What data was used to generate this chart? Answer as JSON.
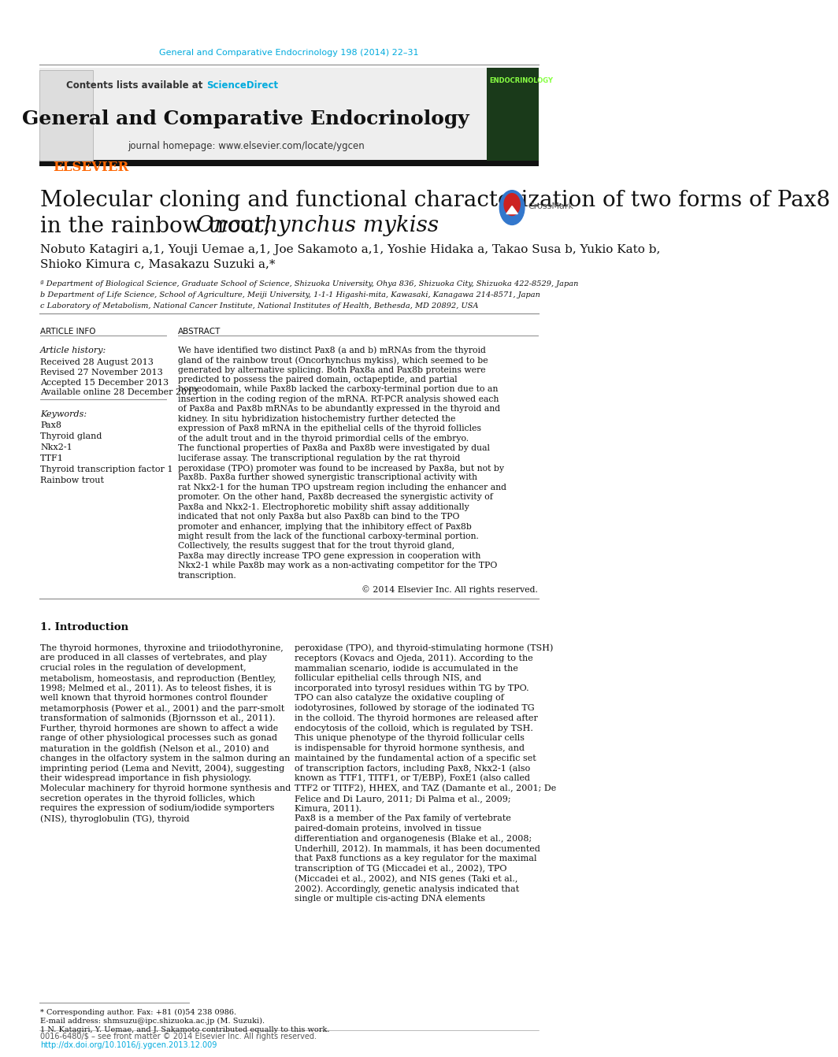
{
  "journal_citation": "General and Comparative Endocrinology 198 (2014) 22–31",
  "journal_name": "General and Comparative Endocrinology",
  "journal_homepage": "journal homepage: www.elsevier.com/locate/ygcen",
  "contents_text": "Contents lists available at ",
  "sciencedirect_text": "ScienceDirect",
  "title_line1": "Molecular cloning and functional characterization of two forms of Pax8",
  "title_line2": "in the rainbow trout, ",
  "title_italic": "Oncorhynchus mykiss",
  "authors": "Nobuto Katagiri a,1, Youji Uemae a,1, Joe Sakamoto a,1, Yoshie Hidaka a, Takao Susa b, Yukio Kato b,\nShioko Kimura c, Masakazu Suzuki a,*",
  "affil_a": "ª Department of Biological Science, Graduate School of Science, Shizuoka University, Ohya 836, Shizuoka City, Shizuoka 422-8529, Japan",
  "affil_b": "b Department of Life Science, School of Agriculture, Meiji University, 1-1-1 Higashi-mita, Kawasaki, Kanagawa 214-8571, Japan",
  "affil_c": "c Laboratory of Metabolism, National Cancer Institute, National Institutes of Health, Bethesda, MD 20892, USA",
  "article_info_header": "ARTICLE INFO",
  "abstract_header": "ABSTRACT",
  "article_history_label": "Article history:",
  "received": "Received 28 August 2013",
  "revised": "Revised 27 November 2013",
  "accepted": "Accepted 15 December 2013",
  "available": "Available online 28 December 2013",
  "keywords_label": "Keywords:",
  "keywords": [
    "Pax8",
    "Thyroid gland",
    "Nkx2-1",
    "TTF1",
    "Thyroid transcription factor 1",
    "Rainbow trout"
  ],
  "abstract_text": "We have identified two distinct Pax8 (a and b) mRNAs from the thyroid gland of the rainbow trout (Oncorhynchus mykiss), which seemed to be generated by alternative splicing. Both Pax8a and Pax8b proteins were predicted to possess the paired domain, octapeptide, and partial homeodomain, while Pax8b lacked the carboxy-terminal portion due to an insertion in the coding region of the mRNA. RT-PCR analysis showed each of Pax8a and Pax8b mRNAs to be abundantly expressed in the thyroid and kidney. In situ hybridization histochemistry further detected the expression of Pax8 mRNA in the epithelial cells of the thyroid follicles of the adult trout and in the thyroid primordial cells of the embryo. The functional properties of Pax8a and Pax8b were investigated by dual luciferase assay. The transcriptional regulation by the rat thyroid peroxidase (TPO) promoter was found to be increased by Pax8a, but not by Pax8b. Pax8a further showed synergistic transcriptional activity with rat Nkx2-1 for the human TPO upstream region including the enhancer and promoter. On the other hand, Pax8b decreased the synergistic activity of Pax8a and Nkx2-1. Electrophoretic mobility shift assay additionally indicated that not only Pax8a but also Pax8b can bind to the TPO promoter and enhancer, implying that the inhibitory effect of Pax8b might result from the lack of the functional carboxy-terminal portion. Collectively, the results suggest that for the trout thyroid gland, Pax8a may directly increase TPO gene expression in cooperation with Nkx2-1 while Pax8b may work as a non-activating competitor for the TPO transcription.",
  "copyright": "© 2014 Elsevier Inc. All rights reserved.",
  "section1_title": "1. Introduction",
  "intro_col1": "The thyroid hormones, thyroxine and triiodothyronine, are produced in all classes of vertebrates, and play crucial roles in the regulation of development, metabolism, homeostasis, and reproduction (Bentley, 1998; Melmed et al., 2011). As to teleost fishes, it is well known that thyroid hormones control flounder metamorphosis (Power et al., 2001) and the parr-smolt transformation of salmonids (Bjornsson et al., 2011). Further, thyroid hormones are shown to affect a wide range of other physiological processes such as gonad maturation in the goldfish (Nelson et al., 2010) and changes in the olfactory system in the salmon during an imprinting period (Lema and Nevitt, 2004), suggesting their widespread importance in fish physiology.\n    Molecular machinery for thyroid hormone synthesis and secretion operates in the thyroid follicles, which requires the expression of sodium/iodide symporters (NIS), thyroglobulin (TG), thyroid",
  "intro_col2": "peroxidase (TPO), and thyroid-stimulating hormone (TSH) receptors (Kovacs and Ojeda, 2011). According to the mammalian scenario, iodide is accumulated in the follicular epithelial cells through NIS, and incorporated into tyrosyl residues within TG by TPO. TPO can also catalyze the oxidative coupling of iodotyrosines, followed by storage of the iodinated TG in the colloid. The thyroid hormones are released after endocytosis of the colloid, which is regulated by TSH. This unique phenotype of the thyroid follicular cells is indispensable for thyroid hormone synthesis, and maintained by the fundamental action of a specific set of transcription factors, including Pax8, Nkx2-1 (also known as TTF1, TITF1, or T/EBP), FoxE1 (also called TTF2 or TITF2), HHEX, and TAZ (Damante et al., 2001; De Felice and Di Lauro, 2011; Di Palma et al., 2009; Kimura, 2011).\n    Pax8 is a member of the Pax family of vertebrate paired-domain proteins, involved in tissue differentiation and organogenesis (Blake et al., 2008; Underhill, 2012). In mammals, it has been documented that Pax8 functions as a key regulator for the maximal transcription of TG (Miccadei et al., 2002), TPO (Miccadei et al., 2002), and NIS genes (Taki et al., 2002). Accordingly, genetic analysis indicated that single or multiple cis-acting DNA elements",
  "footnote_star": "* Corresponding author. Fax: +81 (0)54 238 0986.",
  "footnote_email": "E-mail address: shmsuzu@ipc.shizuoka.ac.jp (M. Suzuki).",
  "footnote_1": "1 N. Katagiri, Y. Uemae, and J. Sakamoto contributed equally to this work.",
  "footer_left": "0016-6480/$ – see front matter © 2014 Elsevier Inc. All rights reserved.",
  "footer_doi": "http://dx.doi.org/10.1016/j.ygcen.2013.12.009",
  "bg_color": "#ffffff",
  "header_bg": "#f0f0f0",
  "elsevier_orange": "#FF6600",
  "link_color": "#00aadd",
  "title_color": "#000000",
  "text_color": "#000000",
  "gray_link": "#4488aa"
}
